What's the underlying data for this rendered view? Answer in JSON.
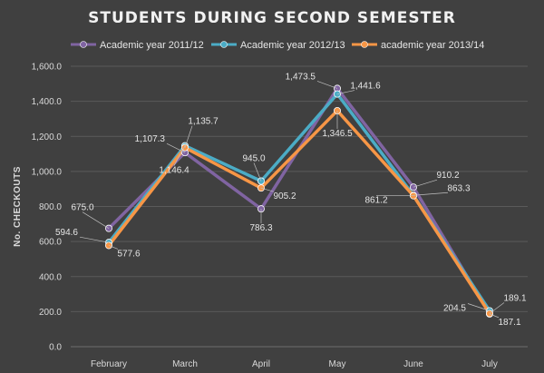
{
  "chart_data": {
    "type": "line",
    "title": "STUDENTS DURING SECOND SEMESTER",
    "ylabel": "No. CHECKOUTS",
    "xlabel": "",
    "ylim": [
      0,
      1600
    ],
    "yticks": [
      "0.0",
      "200.0",
      "400.0",
      "600.0",
      "800.0",
      "1,000.0",
      "1,200.0",
      "1,400.0",
      "1,600.0"
    ],
    "categories": [
      "February",
      "March",
      "April",
      "May",
      "June",
      "July"
    ],
    "legend_position": "top",
    "grid": true,
    "series": [
      {
        "name": "Academic year 2011/12",
        "color": "#8064a2",
        "values": [
          675.0,
          1107.3,
          786.3,
          1473.5,
          910.2,
          187.1
        ],
        "labels": [
          "675.0",
          "1,107.3",
          "786.3",
          "1,473.5",
          "910.2",
          "187.1"
        ]
      },
      {
        "name": "Academic year 2012/13",
        "color": "#4bacc6",
        "values": [
          594.6,
          1146.4,
          945.0,
          1441.6,
          863.3,
          204.5
        ],
        "labels": [
          "594.6",
          "1,146.4",
          "945.0",
          "1,441.6",
          "863.3",
          "204.5"
        ]
      },
      {
        "name": "academic year 2013/14",
        "color": "#f79646",
        "values": [
          577.6,
          1135.7,
          905.2,
          1346.5,
          861.2,
          189.1
        ],
        "labels": [
          "577.6",
          "1,135.7",
          "905.2",
          "1,346.5",
          "861.2",
          "189.1"
        ]
      }
    ]
  }
}
